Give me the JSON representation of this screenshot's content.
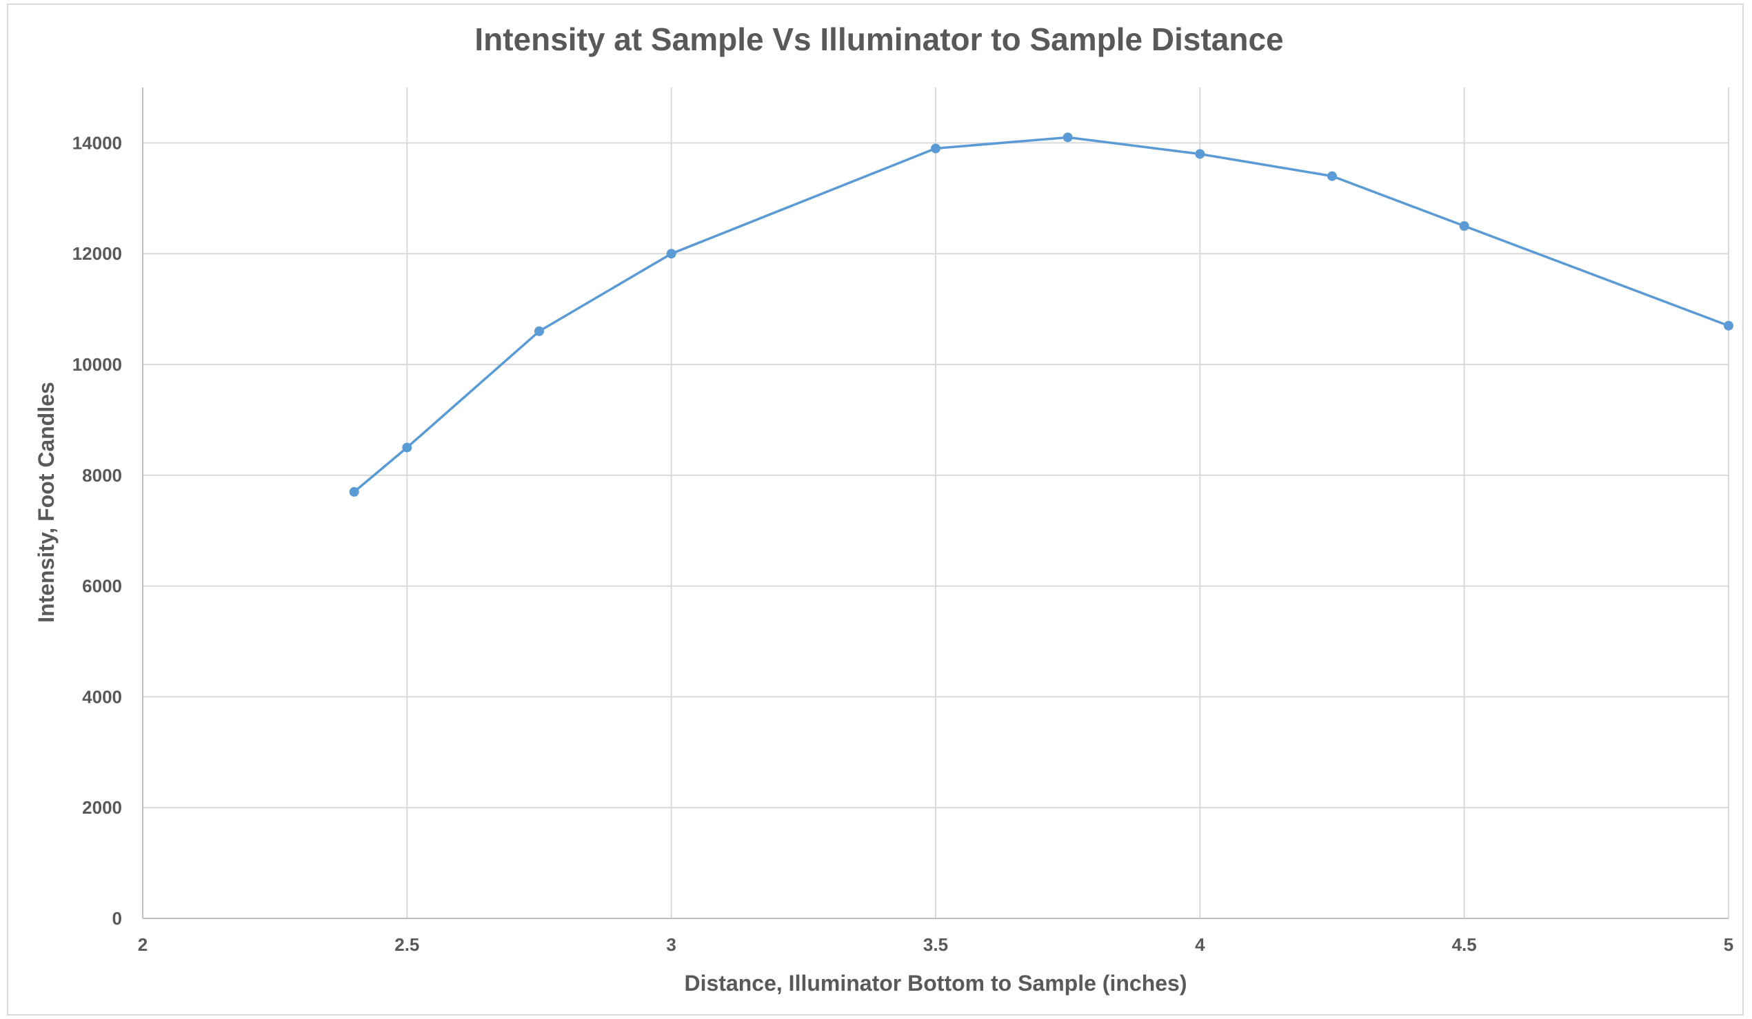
{
  "chart_data": {
    "type": "scatter",
    "title": "Intensity at Sample Vs Illuminator to Sample Distance",
    "xlabel": "Distance, Illuminator Bottom to Sample (inches)",
    "ylabel": "Intensity, Foot Candles",
    "xlim": [
      2,
      5
    ],
    "ylim": [
      0,
      15000
    ],
    "x_ticks": [
      2,
      2.5,
      3,
      3.5,
      4,
      4.5,
      5
    ],
    "x_tick_labels": [
      "2",
      "2.5",
      "3",
      "3.5",
      "4",
      "4.5",
      "5"
    ],
    "y_ticks": [
      0,
      2000,
      4000,
      6000,
      8000,
      10000,
      12000,
      14000
    ],
    "y_tick_labels": [
      "0",
      "2000",
      "4000",
      "6000",
      "8000",
      "10000",
      "12000",
      "14000"
    ],
    "grid": true,
    "legend": "none",
    "series": [
      {
        "color": "#5b9bd5",
        "x": [
          2.4,
          2.5,
          2.75,
          3,
          3.5,
          3.75,
          4,
          4.25,
          4.5,
          5
        ],
        "y": [
          7700,
          8500,
          10600,
          12000,
          13900,
          14100,
          13800,
          13400,
          12500,
          10700
        ]
      }
    ]
  }
}
